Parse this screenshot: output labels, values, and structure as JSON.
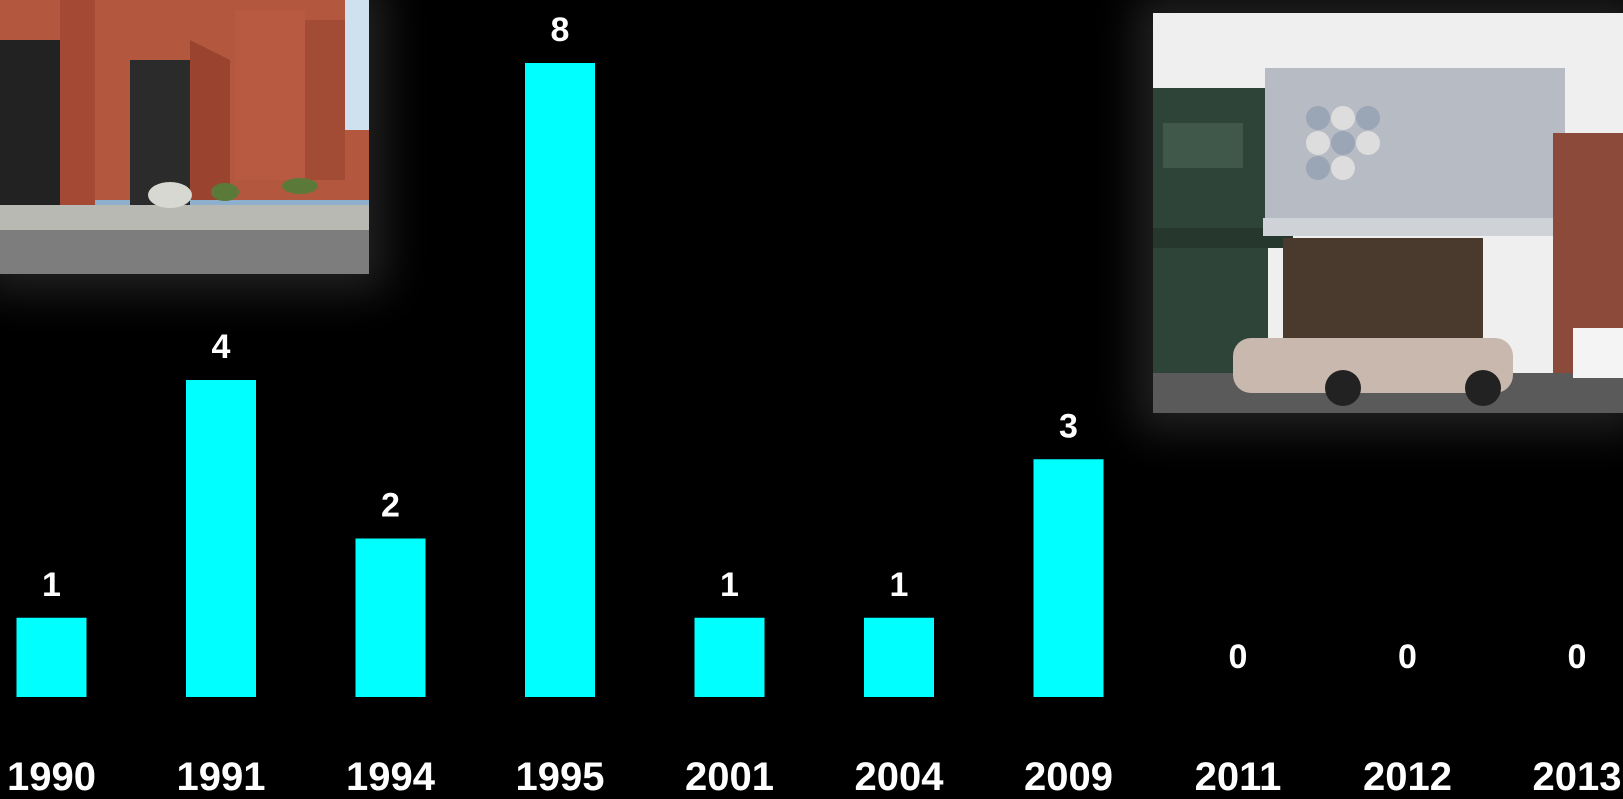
{
  "chart_data": {
    "type": "bar",
    "categories": [
      "1990",
      "1991",
      "1994",
      "1995",
      "2001",
      "2004",
      "2009",
      "2011",
      "2012",
      "2013"
    ],
    "values": [
      1,
      4,
      2,
      8,
      1,
      1,
      3,
      0,
      0,
      0
    ],
    "ylim": [
      0,
      8
    ],
    "grid": false,
    "title": "",
    "xlabel": "",
    "ylabel": "",
    "bar_color": "#00FFFF",
    "label_color": "#FFFFFF",
    "background": "#000000"
  },
  "photos": {
    "left_description_icon": "brick-building-photo",
    "right_description_icon": "storefront-photo"
  }
}
